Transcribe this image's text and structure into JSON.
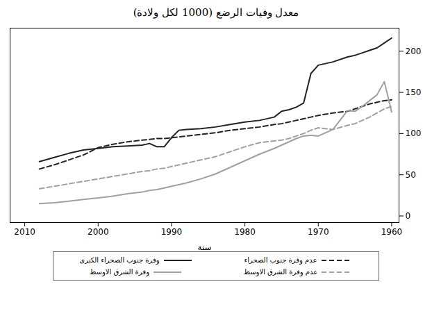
{
  "chart_data": {
    "type": "line",
    "title": "معدل وفيات الرضع (1000 لكل ولادة)",
    "x_label": "سنة",
    "y_label": null,
    "x": [
      2008,
      2006,
      2004,
      2002,
      2000,
      1998,
      1996,
      1994,
      1993,
      1992,
      1991,
      1990,
      1989,
      1988,
      1986,
      1984,
      1982,
      1980,
      1978,
      1976,
      1975,
      1974,
      1973,
      1972,
      1971,
      1970,
      1968,
      1966,
      1965,
      1964,
      1963,
      1962,
      1961,
      1960
    ],
    "series": [
      {
        "name": "وفرة جنوب الصحراء الكبرى",
        "color": "#222222",
        "line_style": "solid",
        "values": [
          66,
          71,
          76,
          80,
          82,
          84,
          85,
          86,
          88,
          84,
          84,
          95,
          104,
          105,
          106,
          108,
          111,
          114,
          116,
          120,
          127,
          129,
          132,
          137,
          173,
          183,
          187,
          193,
          195,
          198,
          201,
          204,
          210,
          216
        ]
      },
      {
        "name": "عدم وفرة جنوب الصحراء",
        "color": "#222222",
        "line_style": "dashed",
        "values": [
          57,
          62,
          68,
          74,
          83,
          87,
          90,
          92,
          93,
          94,
          94,
          95,
          96,
          97,
          99,
          101,
          104,
          106,
          108,
          111,
          112,
          114,
          116,
          118,
          120,
          122,
          125,
          127,
          130,
          133,
          136,
          138,
          140,
          141
        ]
      },
      {
        "name": "وفرة الشرق الاوسط",
        "color": "#a0a0a0",
        "line_style": "solid",
        "values": [
          15,
          16,
          18,
          20,
          22,
          24,
          27,
          29,
          31,
          32,
          34,
          36,
          38,
          40,
          45,
          51,
          59,
          67,
          75,
          82,
          86,
          90,
          94,
          97,
          98,
          97,
          105,
          128,
          127,
          133,
          140,
          147,
          163,
          126
        ]
      },
      {
        "name": "عدم وفرة الشرق الاوسط",
        "color": "#a0a0a0",
        "line_style": "dashed",
        "values": [
          33,
          36,
          39,
          42,
          45,
          48,
          51,
          54,
          55,
          57,
          58,
          60,
          62,
          64,
          68,
          72,
          78,
          84,
          89,
          91,
          92,
          94,
          97,
          100,
          104,
          107,
          105,
          110,
          112,
          116,
          120,
          125,
          130,
          133
        ]
      }
    ],
    "xlim": [
      2012,
      1959
    ],
    "xticks": [
      2010,
      2000,
      1990,
      1980,
      1970,
      1960
    ],
    "ylim": [
      -8,
      228
    ],
    "yticks": [
      0,
      50,
      100,
      150,
      200
    ],
    "grid": false,
    "legend": "bottom"
  }
}
